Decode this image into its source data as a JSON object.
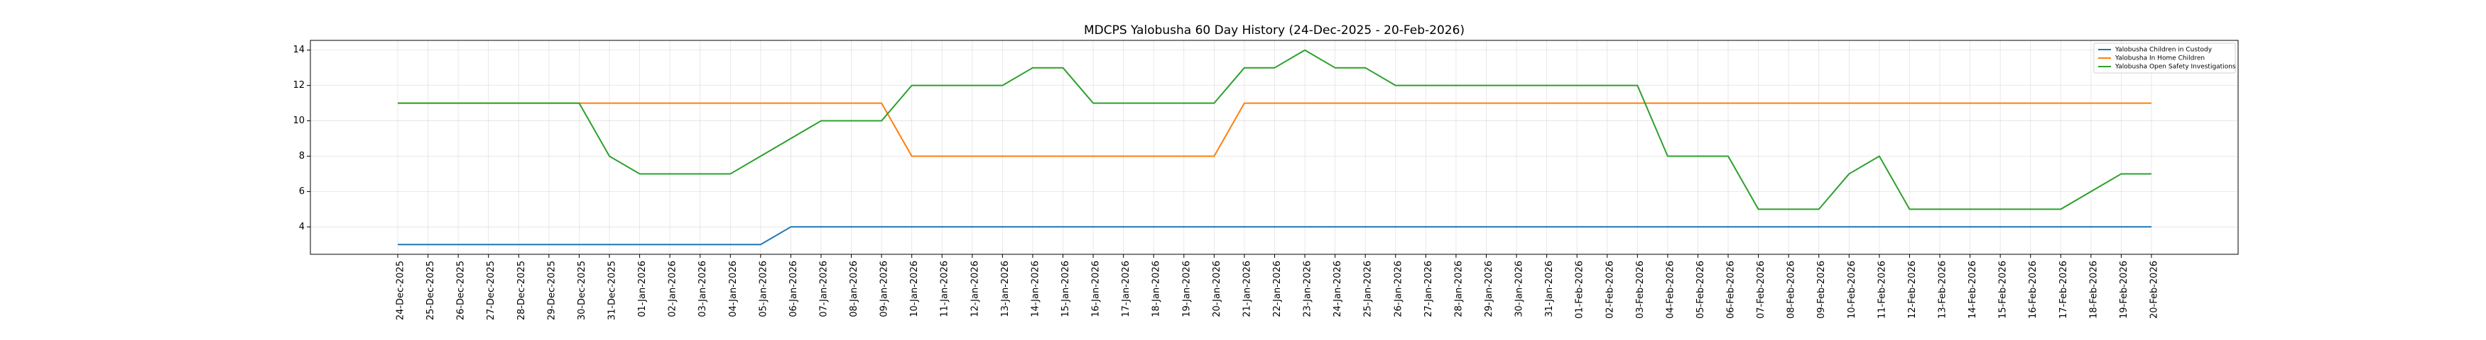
{
  "chart_data": {
    "type": "line",
    "title": "MDCPS Yalobusha 60 Day History (24-Dec-2025 - 20-Feb-2026)",
    "xlabel": "",
    "ylabel": "",
    "ylim": [
      2.45,
      14.55
    ],
    "yticks": [
      4,
      6,
      8,
      10,
      12,
      14
    ],
    "grid": true,
    "legend_position": "top-right",
    "x": [
      "24-Dec-2025",
      "25-Dec-2025",
      "26-Dec-2025",
      "27-Dec-2025",
      "28-Dec-2025",
      "29-Dec-2025",
      "30-Dec-2025",
      "31-Dec-2025",
      "01-Jan-2026",
      "02-Jan-2026",
      "03-Jan-2026",
      "04-Jan-2026",
      "05-Jan-2026",
      "06-Jan-2026",
      "07-Jan-2026",
      "08-Jan-2026",
      "09-Jan-2026",
      "10-Jan-2026",
      "11-Jan-2026",
      "12-Jan-2026",
      "13-Jan-2026",
      "14-Jan-2026",
      "15-Jan-2026",
      "16-Jan-2026",
      "17-Jan-2026",
      "18-Jan-2026",
      "19-Jan-2026",
      "20-Jan-2026",
      "21-Jan-2026",
      "22-Jan-2026",
      "23-Jan-2026",
      "24-Jan-2026",
      "25-Jan-2026",
      "26-Jan-2026",
      "27-Jan-2026",
      "28-Jan-2026",
      "29-Jan-2026",
      "30-Jan-2026",
      "31-Jan-2026",
      "01-Feb-2026",
      "02-Feb-2026",
      "03-Feb-2026",
      "04-Feb-2026",
      "05-Feb-2026",
      "06-Feb-2026",
      "07-Feb-2026",
      "08-Feb-2026",
      "09-Feb-2026",
      "10-Feb-2026",
      "11-Feb-2026",
      "12-Feb-2026",
      "13-Feb-2026",
      "14-Feb-2026",
      "15-Feb-2026",
      "16-Feb-2026",
      "17-Feb-2026",
      "18-Feb-2026",
      "19-Feb-2026",
      "20-Feb-2026"
    ],
    "series": [
      {
        "name": "Yalobusha Children in Custody",
        "color": "#1f77b4",
        "values": [
          3,
          3,
          3,
          3,
          3,
          3,
          3,
          3,
          3,
          3,
          3,
          3,
          3,
          4,
          4,
          4,
          4,
          4,
          4,
          4,
          4,
          4,
          4,
          4,
          4,
          4,
          4,
          4,
          4,
          4,
          4,
          4,
          4,
          4,
          4,
          4,
          4,
          4,
          4,
          4,
          4,
          4,
          4,
          4,
          4,
          4,
          4,
          4,
          4,
          4,
          4,
          4,
          4,
          4,
          4,
          4,
          4,
          4,
          4
        ]
      },
      {
        "name": "Yalobusha In Home Children",
        "color": "#ff7f0e",
        "values": [
          11,
          11,
          11,
          11,
          11,
          11,
          11,
          11,
          11,
          11,
          11,
          11,
          11,
          11,
          11,
          11,
          11,
          8,
          8,
          8,
          8,
          8,
          8,
          8,
          8,
          8,
          8,
          8,
          11,
          11,
          11,
          11,
          11,
          11,
          11,
          11,
          11,
          11,
          11,
          11,
          11,
          11,
          11,
          11,
          11,
          11,
          11,
          11,
          11,
          11,
          11,
          11,
          11,
          11,
          11,
          11,
          11,
          11,
          11
        ]
      },
      {
        "name": "Yalobusha Open Safety Investigations",
        "color": "#2ca02c",
        "values": [
          11,
          11,
          11,
          11,
          11,
          11,
          11,
          8,
          7,
          7,
          7,
          7,
          8,
          9,
          10,
          10,
          10,
          12,
          12,
          12,
          12,
          13,
          13,
          11,
          11,
          11,
          11,
          11,
          13,
          13,
          14,
          13,
          13,
          12,
          12,
          12,
          12,
          12,
          12,
          12,
          12,
          12,
          8,
          8,
          8,
          5,
          5,
          5,
          7,
          8,
          5,
          5,
          5,
          5,
          5,
          5,
          6,
          7,
          7
        ]
      }
    ]
  }
}
